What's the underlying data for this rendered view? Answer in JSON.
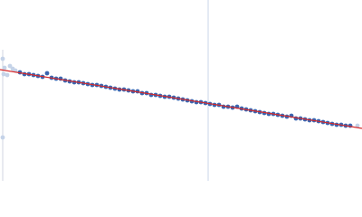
{
  "chart_data": {
    "type": "scatter",
    "xlim": [
      0,
      400
    ],
    "ylim": [
      0,
      200
    ],
    "series": [
      {
        "color": "#c5d3e8",
        "x": [
          3,
          5,
          4,
          8,
          11,
          14,
          17,
          3,
          395
        ],
        "values": [
          135,
          125,
          118,
          117,
          127,
          124,
          122,
          48,
          61
        ]
      },
      {
        "color": "#3a65b0",
        "x": [
          22,
          27,
          32,
          37,
          42,
          47,
          52,
          57,
          62,
          67,
          72,
          77,
          82,
          87,
          92,
          97,
          102,
          107,
          112,
          117,
          122,
          127,
          132,
          137,
          142,
          147,
          152,
          157,
          162,
          167,
          172,
          177,
          182,
          187,
          192,
          197,
          202,
          207,
          212,
          217,
          222,
          227,
          232,
          237,
          242,
          247,
          252,
          257,
          262,
          267,
          272,
          277,
          282,
          287,
          292,
          297,
          302,
          307,
          312,
          317,
          322,
          327,
          332,
          337,
          342,
          347,
          352,
          357,
          362,
          367,
          372,
          377,
          382,
          387
        ],
        "values": [
          120,
          118,
          118,
          117,
          116,
          115,
          119,
          114,
          113,
          113,
          111,
          110,
          109,
          109,
          108,
          107,
          106,
          106,
          105,
          104,
          103,
          102,
          101,
          101,
          100,
          99,
          99,
          97,
          97,
          95,
          95,
          94,
          93,
          93,
          92,
          91,
          90,
          89,
          88,
          87,
          87,
          86,
          85,
          84,
          84,
          82,
          82,
          81,
          82,
          80,
          79,
          78,
          77,
          76,
          75,
          74,
          74,
          73,
          72,
          71,
          72,
          69,
          69,
          68,
          67,
          67,
          66,
          65,
          64,
          63,
          62,
          62,
          61,
          61
        ]
      }
    ],
    "fit_line": {
      "color": "#d62728",
      "x": [
        0,
        400
      ],
      "values": [
        123,
        58
      ]
    }
  }
}
